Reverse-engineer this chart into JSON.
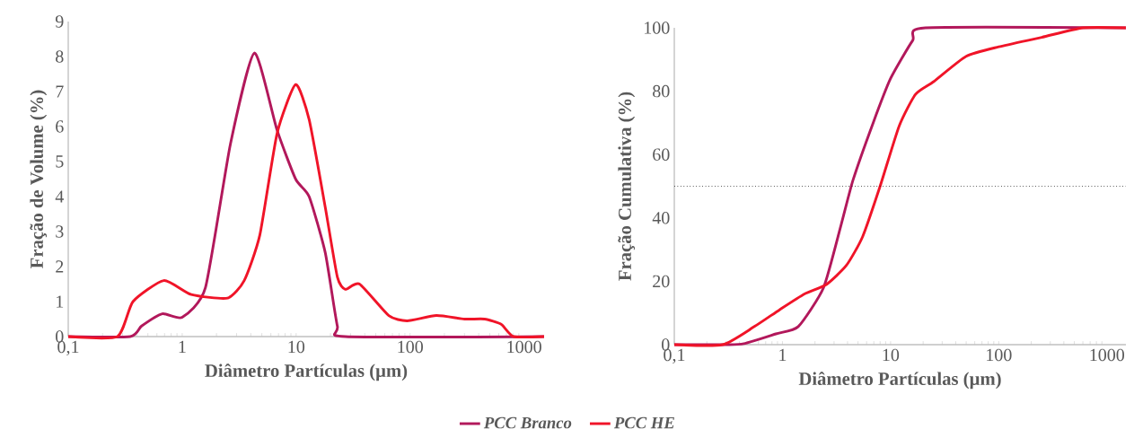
{
  "chart_data": [
    {
      "type": "line",
      "xlabel": "Diâmetro Partículas (µm)",
      "ylabel": "Fração de Volume (%)",
      "log": "x",
      "grid": false,
      "legend": "bottom",
      "marker": "none",
      "line_style": "solid",
      "xlim": [
        0.1,
        1500
      ],
      "xticks": [
        {
          "value": 0.1,
          "label": "0,1"
        },
        1,
        10,
        100,
        1000
      ],
      "ylim": [
        0,
        9
      ],
      "yticks": [
        0,
        1,
        2,
        3,
        4,
        5,
        6,
        7,
        8,
        9
      ],
      "series": [
        {
          "name": "*PCC Branco*",
          "color": "#b2185b",
          "x": [
            0.1,
            0.35,
            0.44,
            0.67,
            1.0,
            1.6,
            2.65,
            4.3,
            6.8,
            9.9,
            13,
            18,
            23,
            27,
            1500
          ],
          "values": [
            0,
            0,
            0.3,
            0.65,
            0.55,
            1.4,
            5.5,
            8.1,
            5.9,
            4.5,
            4.0,
            2.4,
            0.3,
            0,
            0
          ]
        },
        {
          "name": "*PCC HE*",
          "color": "#f01428",
          "x": [
            0.1,
            0.27,
            0.37,
            0.69,
            1.2,
            2.5,
            3.5,
            4.8,
            6.8,
            9.9,
            13,
            18,
            23,
            27,
            36,
            65,
            94,
            170,
            300,
            450,
            630,
            810,
            1500
          ],
          "values": [
            0,
            0,
            1.0,
            1.6,
            1.2,
            1.1,
            1.6,
            2.9,
            5.8,
            7.2,
            6.2,
            3.7,
            1.7,
            1.35,
            1.5,
            0.6,
            0.45,
            0.6,
            0.5,
            0.5,
            0.35,
            0,
            0
          ]
        }
      ]
    },
    {
      "type": "line",
      "xlabel": "Diâmetro Partículas (µm)",
      "ylabel": "Fração Cumulativa (%)",
      "log": "x",
      "grid": false,
      "marker": "none",
      "line_style": "solid",
      "xlim": [
        0.1,
        1500
      ],
      "xticks": [
        {
          "value": 0.1,
          "label": "0,1"
        },
        1,
        10,
        100,
        1000
      ],
      "ylim": [
        0,
        100
      ],
      "yticks": [
        0,
        20,
        40,
        60,
        80,
        100
      ],
      "ref_lines": [
        {
          "axis": "y",
          "value": 50,
          "color": "#000000",
          "line_style": "dotted"
        }
      ],
      "series": [
        {
          "color": "#b2185b",
          "x": [
            0.1,
            0.3,
            0.44,
            0.87,
            1.4,
            2.4,
            3.5,
            4.5,
            6.9,
            10,
            16,
            21,
            1500
          ],
          "values": [
            0,
            0,
            0.3,
            3.4,
            5.7,
            18,
            38,
            52,
            70,
            84,
            96,
            100,
            100
          ]
        },
        {
          "color": "#f01428",
          "x": [
            0.1,
            0.28,
            0.55,
            0.94,
            1.6,
            2.55,
            3.9,
            5.5,
            8.0,
            12,
            17,
            25,
            50,
            100,
            250,
            600,
            1500
          ],
          "values": [
            0,
            0,
            5.7,
            11,
            16,
            19,
            25,
            34,
            50,
            69,
            79,
            83,
            91,
            94,
            97,
            100,
            100
          ]
        }
      ]
    }
  ]
}
